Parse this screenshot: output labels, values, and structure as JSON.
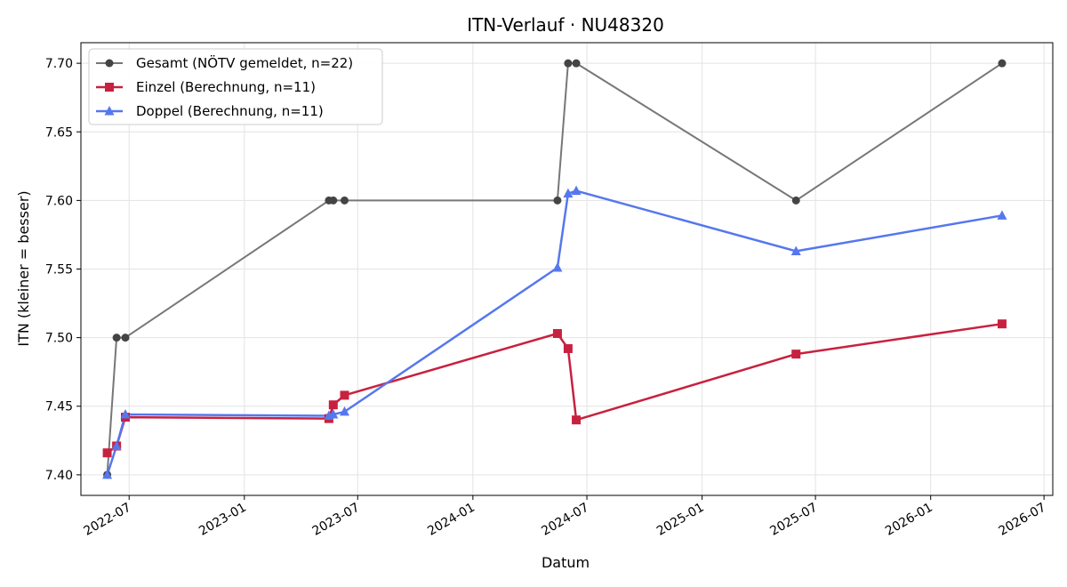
{
  "chart_data": {
    "type": "line",
    "title": "ITN-Verlauf · NU48320",
    "xlabel": "Datum",
    "ylabel": "ITN  (kleiner = besser)",
    "x_type": "date",
    "xlim": [
      "2022-04-15",
      "2026-07-15"
    ],
    "ylim": [
      7.385,
      7.715
    ],
    "x_ticks": [
      "2022-07-01",
      "2023-01-01",
      "2023-07-01",
      "2024-01-01",
      "2024-07-01",
      "2025-01-01",
      "2025-07-01",
      "2026-01-01",
      "2026-07-01"
    ],
    "x_tick_labels": [
      "2022-07",
      "2023-01",
      "2023-07",
      "2024-01",
      "2024-07",
      "2025-01",
      "2025-07",
      "2026-01",
      "2026-07"
    ],
    "y_ticks": [
      7.4,
      7.45,
      7.5,
      7.55,
      7.6,
      7.65,
      7.7
    ],
    "y_tick_labels": [
      "7.40",
      "7.45",
      "7.50",
      "7.55",
      "7.60",
      "7.65",
      "7.70"
    ],
    "grid": true,
    "legend_position": "top-left",
    "series": [
      {
        "name": "Gesamt (NÖTV gemeldet, n=22)",
        "color": "#777777",
        "marker_color": "#444444",
        "marker": "circle",
        "line_width": 2,
        "points": [
          [
            "2022-05-27",
            7.4
          ],
          [
            "2022-06-11",
            7.5
          ],
          [
            "2022-06-25",
            7.5
          ],
          [
            "2023-05-16",
            7.6
          ],
          [
            "2023-05-23",
            7.6
          ],
          [
            "2023-06-10",
            7.6
          ],
          [
            "2024-05-15",
            7.6
          ],
          [
            "2024-06-01",
            7.7
          ],
          [
            "2024-06-14",
            7.7
          ],
          [
            "2025-05-31",
            7.6
          ],
          [
            "2026-04-25",
            7.7
          ]
        ]
      },
      {
        "name": "Einzel (Berechnung, n=11)",
        "color": "#c8213f",
        "marker_color": "#c8213f",
        "marker": "square",
        "line_width": 2.5,
        "points": [
          [
            "2022-05-27",
            7.416
          ],
          [
            "2022-06-11",
            7.421
          ],
          [
            "2022-06-25",
            7.442
          ],
          [
            "2023-05-16",
            7.441
          ],
          [
            "2023-05-23",
            7.451
          ],
          [
            "2023-06-10",
            7.458
          ],
          [
            "2024-05-15",
            7.503
          ],
          [
            "2024-06-01",
            7.492
          ],
          [
            "2024-06-14",
            7.44
          ],
          [
            "2025-05-31",
            7.488
          ],
          [
            "2026-04-25",
            7.51
          ]
        ]
      },
      {
        "name": "Doppel (Berechnung, n=11)",
        "color": "#5577ee",
        "marker_color": "#5577ee",
        "marker": "triangle",
        "line_width": 2.5,
        "points": [
          [
            "2022-05-27",
            7.4
          ],
          [
            "2022-06-11",
            7.421
          ],
          [
            "2022-06-25",
            7.444
          ],
          [
            "2023-05-16",
            7.443
          ],
          [
            "2023-05-23",
            7.444
          ],
          [
            "2023-06-10",
            7.446
          ],
          [
            "2024-05-15",
            7.551
          ],
          [
            "2024-06-01",
            7.605
          ],
          [
            "2024-06-14",
            7.607
          ],
          [
            "2025-05-31",
            7.563
          ],
          [
            "2026-04-25",
            7.589
          ]
        ]
      }
    ]
  }
}
